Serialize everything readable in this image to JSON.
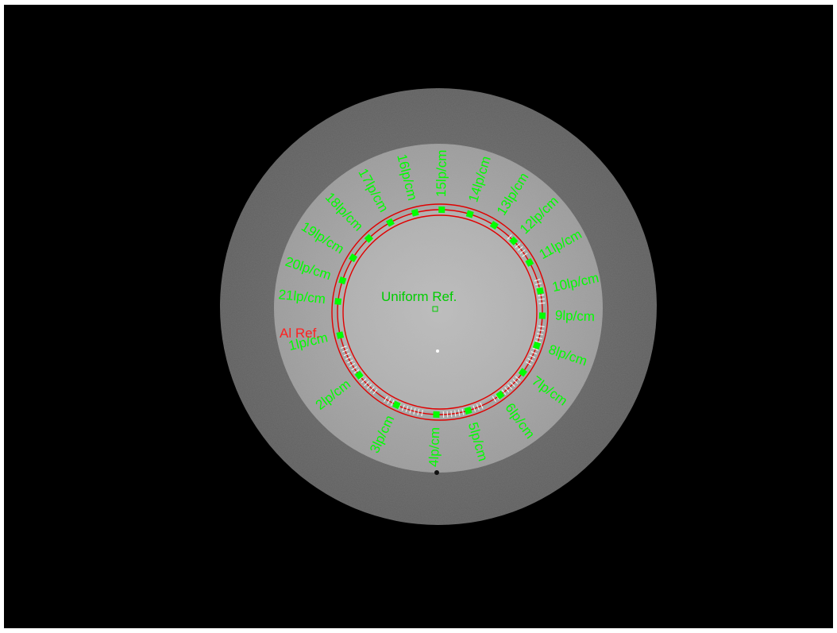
{
  "image": {
    "background_color": "#000000",
    "outer_ring_color": "#6c6c6c",
    "inner_disc_color": "#a6a6a6",
    "center_disc_color": "#bcbcbc",
    "label_color": "#00ff00",
    "roi_ring_color": "#e00000",
    "marker_color": "#00ff00",
    "highlight_color": "#ffffff"
  },
  "references": {
    "uniform": {
      "label": "Uniform Ref.",
      "color": "#00cc00"
    },
    "aluminum": {
      "label": "Al Ref.",
      "color": "#ff2020"
    }
  },
  "line_pair_labels": [
    {
      "label": "1lp/cm",
      "angle_deg": 193
    },
    {
      "label": "2lp/cm",
      "angle_deg": 218
    },
    {
      "label": "3lp/cm",
      "angle_deg": 245
    },
    {
      "label": "4lp/cm",
      "angle_deg": 268
    },
    {
      "label": "5lp/cm",
      "angle_deg": 286
    },
    {
      "label": "6lp/cm",
      "angle_deg": 306
    },
    {
      "label": "7lp/cm",
      "angle_deg": 324
    },
    {
      "label": "8lp/cm",
      "angle_deg": 341
    },
    {
      "label": "9lp/cm",
      "angle_deg": 358
    },
    {
      "label": "10lp/cm",
      "angle_deg": 12
    },
    {
      "label": "11lp/cm",
      "angle_deg": 29
    },
    {
      "label": "12lp/cm",
      "angle_deg": 44
    },
    {
      "label": "13lp/cm",
      "angle_deg": 58
    },
    {
      "label": "14lp/cm",
      "angle_deg": 73
    },
    {
      "label": "15lp/cm",
      "angle_deg": 89
    },
    {
      "label": "16lp/cm",
      "angle_deg": 104
    },
    {
      "label": "17lp/cm",
      "angle_deg": 119
    },
    {
      "label": "18lp/cm",
      "angle_deg": 134
    },
    {
      "label": "19lp/cm",
      "angle_deg": 148
    },
    {
      "label": "20lp/cm",
      "angle_deg": 162
    },
    {
      "label": "21lp/cm",
      "angle_deg": 174
    }
  ]
}
